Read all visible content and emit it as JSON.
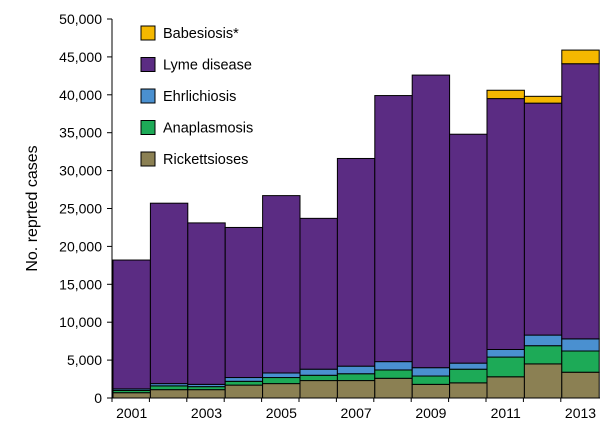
{
  "chart_data": {
    "type": "bar",
    "stacked": true,
    "ylabel": "No. reprted cases",
    "xlabel": "",
    "ylim": [
      0,
      50000
    ],
    "yticks": [
      0,
      5000,
      10000,
      15000,
      20000,
      25000,
      30000,
      35000,
      40000,
      45000,
      50000
    ],
    "ytick_labels": [
      "0",
      "5,000",
      "10,000",
      "15,000",
      "20,000",
      "25,000",
      "30,000",
      "35,000",
      "40,000",
      "45,000",
      "50,000"
    ],
    "categories": [
      "2001",
      "2002",
      "2003",
      "2004",
      "2005",
      "2006",
      "2007",
      "2008",
      "2009",
      "2010",
      "2011",
      "2012",
      "2013"
    ],
    "xtick_labels": [
      "2001",
      "",
      "2003",
      "",
      "2005",
      "",
      "2007",
      "",
      "2009",
      "",
      "2011",
      "",
      "2013"
    ],
    "legend_position": "top-left",
    "grid": false,
    "series": [
      {
        "name": "Rickettsioses",
        "color": "#8b8053",
        "values": [
          700,
          1100,
          1100,
          1700,
          1900,
          2300,
          2300,
          2600,
          1800,
          2000,
          2800,
          4500,
          3400
        ]
      },
      {
        "name": "Anaplasmosis",
        "color": "#1daa57",
        "values": [
          300,
          500,
          400,
          500,
          800,
          700,
          900,
          1100,
          1100,
          1800,
          2600,
          2400,
          2800
        ]
      },
      {
        "name": "Ehrlichiosis",
        "color": "#4a90d0",
        "values": [
          200,
          300,
          300,
          500,
          600,
          800,
          1000,
          1100,
          1100,
          800,
          1000,
          1400,
          1600
        ]
      },
      {
        "name": "Lyme disease",
        "color": "#5b2c83",
        "values": [
          17000,
          23800,
          21300,
          19800,
          23400,
          19900,
          27400,
          35100,
          38600,
          30200,
          33100,
          30600,
          36300
        ]
      },
      {
        "name": "Babesiosis*",
        "color": "#f5b800",
        "values": [
          0,
          0,
          0,
          0,
          0,
          0,
          0,
          0,
          0,
          0,
          1100,
          900,
          1800
        ]
      }
    ],
    "legend_order": [
      "Babesiosis*",
      "Lyme disease",
      "Ehrlichiosis",
      "Anaplasmosis",
      "Rickettsioses"
    ]
  }
}
